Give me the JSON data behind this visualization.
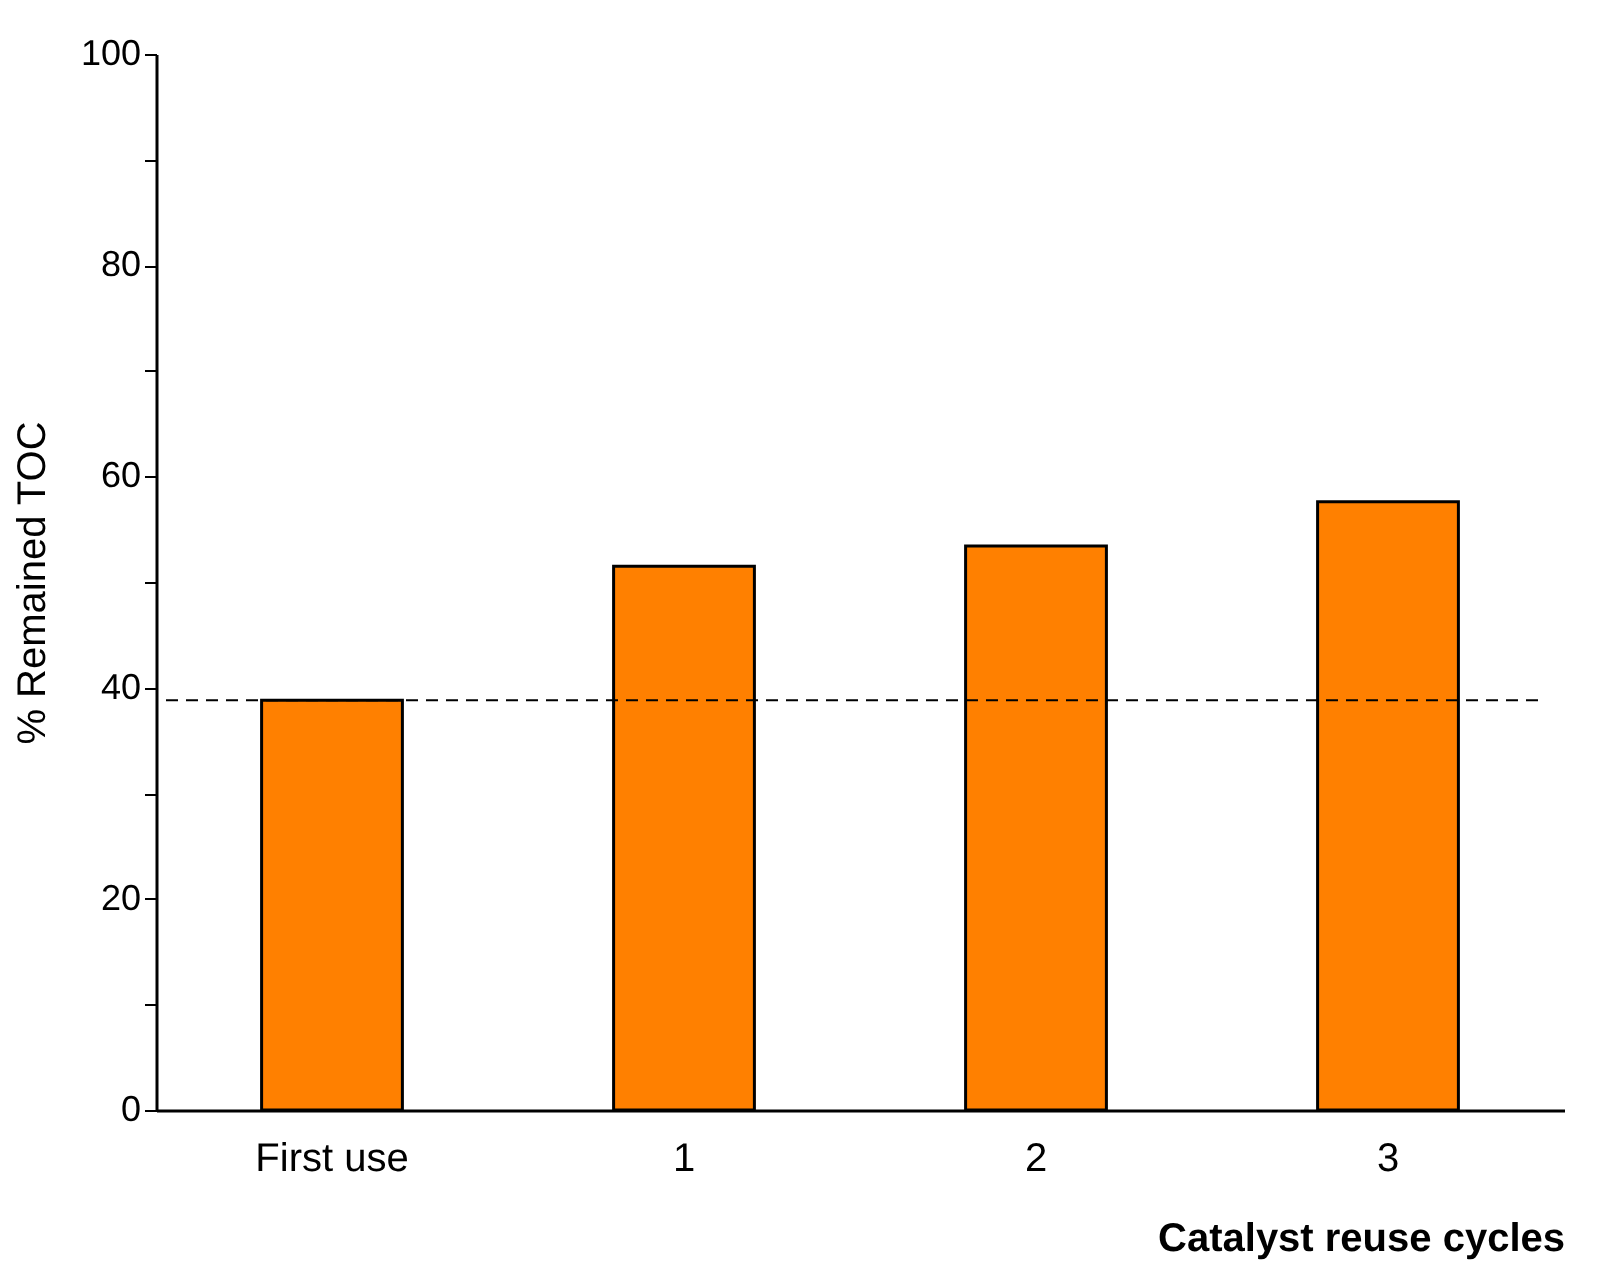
{
  "chart_data": {
    "type": "bar",
    "xlabel": "Catalyst reuse cycles",
    "ylabel": "% Remained TOC",
    "categories": [
      "First use",
      "1",
      "2",
      "3"
    ],
    "series": [
      {
        "color": "#ff8000",
        "values": [
          38.8,
          51.5,
          53.4,
          57.6
        ]
      }
    ],
    "ylim": [
      0,
      100
    ],
    "yticks": [
      0,
      {
        "value": 10,
        "label": null
      },
      20,
      {
        "value": 30,
        "label": null
      },
      40,
      {
        "value": 50,
        "label": null
      },
      60,
      {
        "value": 70,
        "label": null
      },
      80,
      {
        "value": 90,
        "label": null
      },
      100
    ],
    "ref_lines": [
      {
        "axis": "y",
        "value": 38.8,
        "line_style": "dashed",
        "color": "#000000"
      }
    ],
    "grid": false
  }
}
